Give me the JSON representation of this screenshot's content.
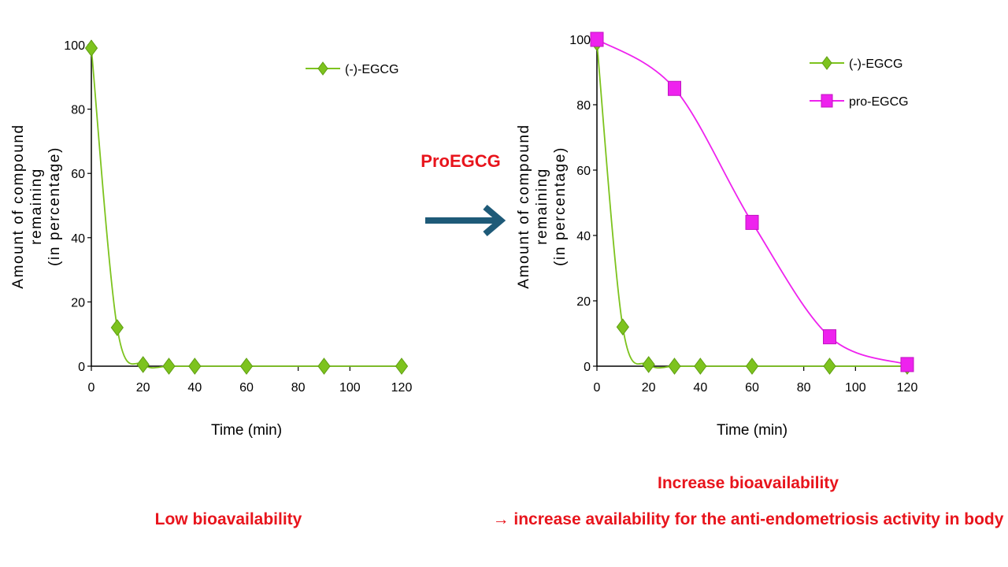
{
  "chart_data": [
    {
      "type": "line",
      "ylabel": [
        "Amount of compound",
        "remaining",
        "(in percentage)"
      ],
      "xlabel": "Time (min)",
      "x_ticks": [
        0,
        20,
        40,
        60,
        80,
        100,
        120
      ],
      "y_ticks": [
        0,
        20,
        40,
        60,
        80,
        100
      ],
      "xlim": [
        0,
        120
      ],
      "ylim": [
        0,
        100
      ],
      "legend_position": "top-right",
      "series": [
        {
          "name": "(-)-EGCG",
          "color": "#7dc31e",
          "marker": "diamond",
          "x": [
            0,
            10,
            20,
            30,
            40,
            60,
            90,
            120
          ],
          "y": [
            99,
            12,
            0.5,
            0,
            0,
            0,
            0,
            0
          ]
        }
      ]
    },
    {
      "type": "line",
      "ylabel": [
        "Amount of compound",
        "remaining",
        "(in percentage)"
      ],
      "xlabel": "Time (min)",
      "x_ticks": [
        0,
        20,
        40,
        60,
        80,
        100,
        120
      ],
      "y_ticks": [
        0,
        20,
        40,
        60,
        80,
        100
      ],
      "xlim": [
        0,
        120
      ],
      "ylim": [
        0,
        100
      ],
      "legend_position": "top-right",
      "series": [
        {
          "name": "(-)-EGCG",
          "color": "#7dc31e",
          "marker": "diamond",
          "x": [
            0,
            10,
            20,
            30,
            40,
            60,
            90,
            120
          ],
          "y": [
            99,
            12,
            0.5,
            0,
            0,
            0,
            0,
            0
          ]
        },
        {
          "name": "pro-EGCG",
          "color": "#ee22ee",
          "marker": "square",
          "x": [
            0,
            30,
            60,
            90,
            120
          ],
          "y": [
            100,
            85,
            44,
            9,
            0.5
          ]
        }
      ]
    }
  ],
  "middle": {
    "label": "ProEGCG",
    "arrow_color": "#1e5a78",
    "arrow_icon": "right-arrow-icon"
  },
  "captions": {
    "left": "Low bioavailability",
    "right_line1": "Increase bioavailability",
    "right_line2": "→ increase availability for the anti-endometriosis  activity in body",
    "color": "#e8141c"
  }
}
